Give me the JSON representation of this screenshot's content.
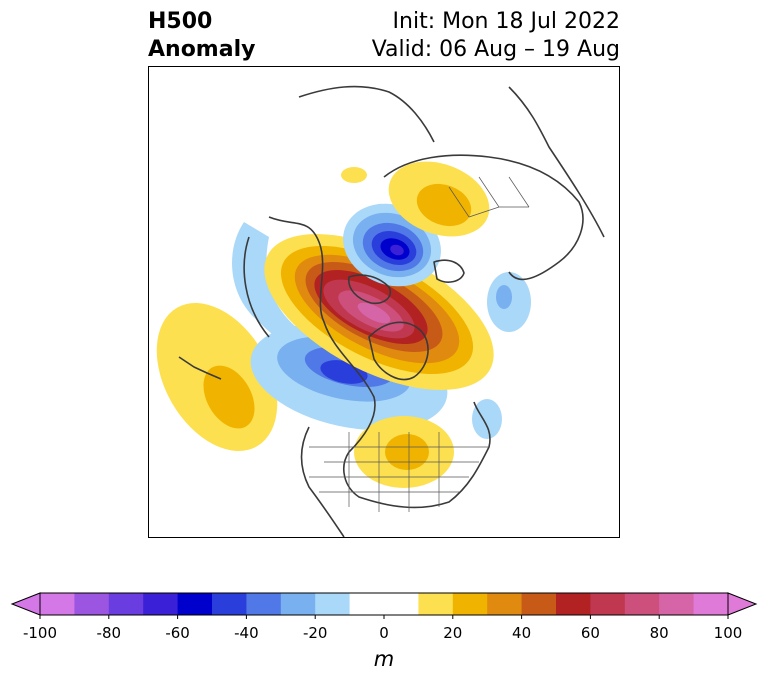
{
  "title": {
    "main_line1": "H500",
    "main_line2": "Anomaly",
    "init": "Init: Mon 18 Jul 2022",
    "valid": "Valid: 06 Aug – 19 Aug"
  },
  "colorbar": {
    "unit": "m",
    "range": [
      -100,
      100
    ],
    "step": 10,
    "tick_labels": [
      "-100",
      "-80",
      "-60",
      "-40",
      "-20",
      "0",
      "20",
      "40",
      "60",
      "80",
      "100"
    ],
    "colors": [
      "#d378e6",
      "#9b55e0",
      "#6a3de0",
      "#3a20d6",
      "#0000cc",
      "#2a3edc",
      "#5078e6",
      "#78b0f0",
      "#aad8f8",
      "#ffffff",
      "#ffffff",
      "#fde050",
      "#f0b400",
      "#e08a10",
      "#c85a18",
      "#b22222",
      "#c03850",
      "#cc4f7c",
      "#d665a8",
      "#e07ad8"
    ],
    "extend": "both"
  },
  "map": {
    "projection": "polar-stereographic-north",
    "region": "North America / Arctic",
    "anomalies": [
      {
        "name": "arctic-canada-ridge",
        "value_m": 70,
        "sign": "positive"
      },
      {
        "name": "northeast-pacific-ridge",
        "value_m": 30,
        "sign": "positive"
      },
      {
        "name": "eastern-us-ridge",
        "value_m": 30,
        "sign": "positive"
      },
      {
        "name": "siberia-ridge",
        "value_m": 30,
        "sign": "positive"
      },
      {
        "name": "kara-sea-trough",
        "value_m": -60,
        "sign": "negative"
      },
      {
        "name": "western-canada-trough",
        "value_m": -50,
        "sign": "negative"
      },
      {
        "name": "alaska-trough",
        "value_m": -20,
        "sign": "negative"
      },
      {
        "name": "north-atlantic-trough",
        "value_m": -20,
        "sign": "negative"
      },
      {
        "name": "chukchi-trough",
        "value_m": -20,
        "sign": "negative"
      }
    ]
  }
}
